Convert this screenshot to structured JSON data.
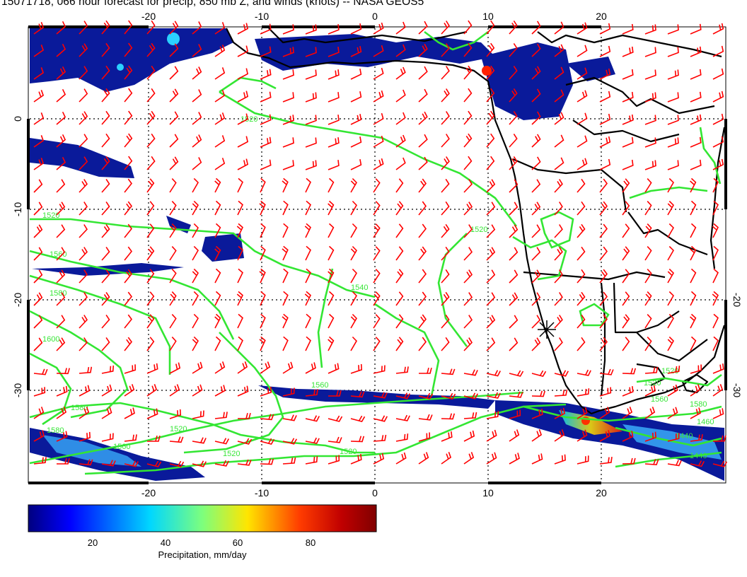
{
  "title": "15071718, 066 hour forecast for precip, 850 mb Z, and winds (knots) -- NASA GEOS5",
  "map": {
    "lon_ticks": [
      "-20",
      "-10",
      "0",
      "10",
      "20"
    ],
    "lat_ticks": [
      "0",
      "-10",
      "-20",
      "-30"
    ],
    "contour_labels": [
      "1520",
      "1520",
      "1520",
      "1540",
      "1560",
      "1580",
      "1600",
      "1580",
      "1560",
      "1580",
      "1520",
      "1520",
      "1520",
      "1560",
      "1460",
      "1440",
      "1440",
      "1560",
      "1580",
      "1520",
      "1520"
    ],
    "marker": "asterisk-marker",
    "colors": {
      "wind_barbs": "#ff0000",
      "contours": "#33e633",
      "coastlines": "#000000",
      "precip_low": "#000080",
      "precip_high": "#800000"
    }
  },
  "colorbar": {
    "label": "Precipitation, mm/day",
    "ticks": [
      "20",
      "40",
      "60",
      "80"
    ]
  }
}
